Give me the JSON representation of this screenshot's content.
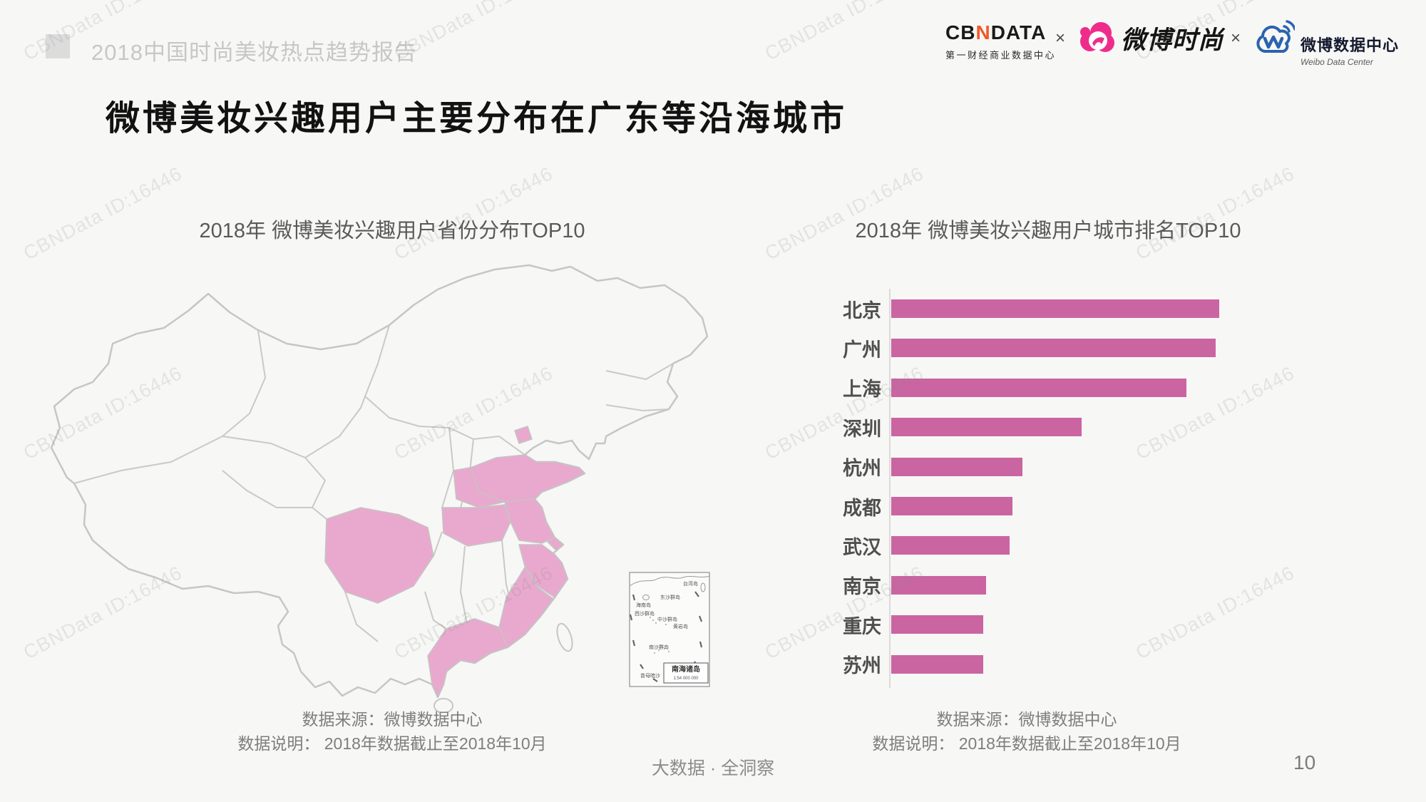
{
  "colors": {
    "background": "#f7f7f5",
    "bar_pink": "#ca65a2",
    "map_highlight_pink": "#e9a9ce",
    "map_stroke_gray": "#c6c6c6",
    "cbndata_accent_orange": "#f05a28",
    "weibo_fashion_pink": "#ee2d8a",
    "weibo_datacenter_blue": "#2a63ad"
  },
  "watermark": {
    "text": "CBNData ID:16446"
  },
  "header": {
    "report_title": "2018中国时尚美妆热点趋势报告",
    "cbndata": {
      "wordmark_left": "CB",
      "accent_letter": "N",
      "wordmark_right": "DATA",
      "subtitle": "第一财经商业数据中心"
    },
    "separator1": "×",
    "separator2": "×",
    "weibo_fashion": {
      "label": "微博时尚"
    },
    "weibo_datacenter": {
      "label": "微博数据中心",
      "sublabel": "Weibo Data Center"
    }
  },
  "main_title": "微博美妆兴趣用户主要分布在广东等沿海城市",
  "left_panel": {
    "title": "2018年 微博美妆兴趣用户省份分布TOP10",
    "source_line1": "数据来源：微博数据中心",
    "source_line2": "数据说明： 2018年数据截止至2018年10月",
    "highlighted_provinces": [
      "广东",
      "江苏",
      "山东",
      "浙江",
      "河南",
      "四川",
      "湖北",
      "福建",
      "北京",
      "上海"
    ],
    "inset": {
      "box_label": "南海诸岛",
      "scale": "1:54 000 000",
      "labels": [
        "台湾岛",
        "东沙群岛",
        "海南岛",
        "西沙群岛",
        "中沙群岛",
        "黄岩岛",
        "南沙群岛",
        "曾母暗沙"
      ]
    }
  },
  "right_panel": {
    "title": "2018年 微博美妆兴趣用户城市排名TOP10",
    "source_line1": "数据来源：微博数据中心",
    "source_line2": "数据说明： 2018年数据截止至2018年10月"
  },
  "chart_data": {
    "type": "bar",
    "orientation": "horizontal",
    "title": "2018年 微博美妆兴趣用户城市排名TOP10",
    "categories": [
      "北京",
      "广州",
      "上海",
      "深圳",
      "杭州",
      "成都",
      "武汉",
      "南京",
      "重庆",
      "苏州"
    ],
    "values": [
      100,
      99,
      90,
      58,
      40,
      37,
      36,
      29,
      28,
      28
    ],
    "value_note": "relative index estimated from bar lengths; no numeric axis labels shown",
    "xlabel": "",
    "ylabel": "",
    "xlim": [
      0,
      110
    ],
    "grid": false,
    "legend": "none",
    "bar_color": "#ca65a2"
  },
  "footer": {
    "center_text": "大数据 · 全洞察",
    "page_number": "10"
  }
}
